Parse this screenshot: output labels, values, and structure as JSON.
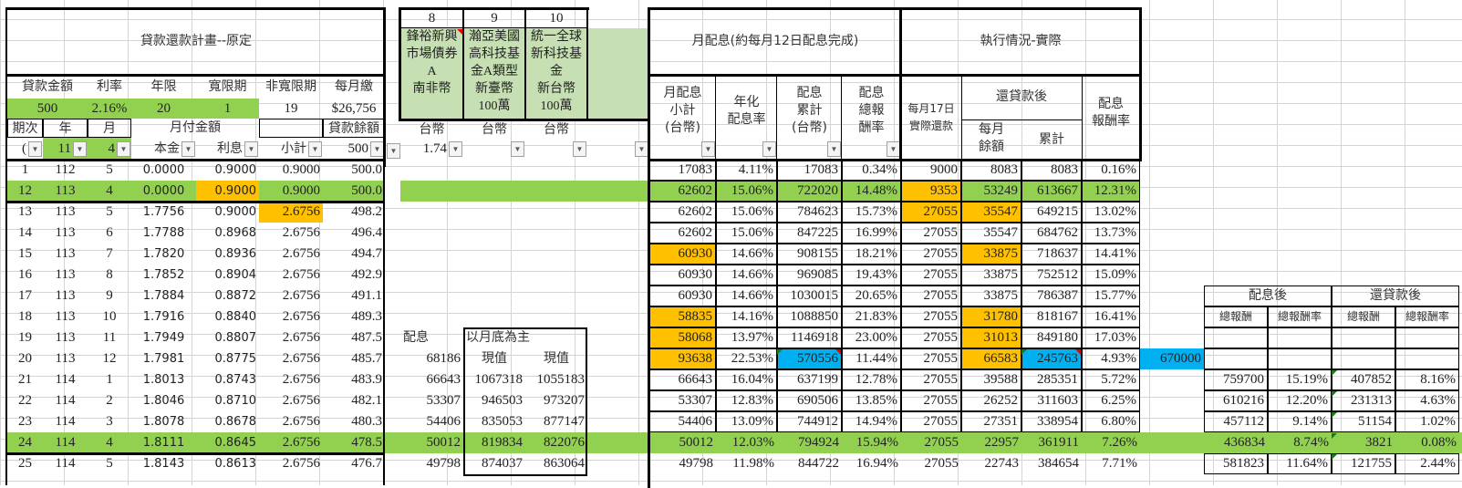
{
  "plan": {
    "title": "貸款還款計畫--原定",
    "param_labels": [
      "貸款金額",
      "利率",
      "年限",
      "寬限期",
      "非寬限期",
      "每月繳"
    ],
    "param_values": [
      "500",
      "2.16%",
      "20",
      "1",
      "19",
      "$26,756"
    ],
    "col_labels": {
      "period": "期次",
      "year": "年",
      "month": "月",
      "monthly_payment": "月付金額",
      "balance": "貸款餘額"
    },
    "filter_row": {
      "period": "(",
      "year": "11",
      "month": "4",
      "principal": "本金",
      "interest": "利息",
      "subtotal": "小計",
      "balance": "500"
    }
  },
  "funds": {
    "numbers": [
      "8",
      "9",
      "10",
      ""
    ],
    "names": [
      "鋒裕新興\n市場債券\nA\n南非幣",
      "瀚亞美國\n高科技基\n金A類型\n新臺幣\n100萬",
      "統一全球\n新科技基\n金\n新台幣\n100萬",
      ""
    ],
    "currency": [
      "台幣",
      "台幣",
      "台幣",
      ""
    ],
    "filter_value": "1.74"
  },
  "dividend": {
    "title": "月配息(約每月12日配息完成)",
    "headers": [
      "月配息\n小計\n(台幣)",
      "年化\n配息率",
      "配息\n累計\n(台幣)",
      "配息\n總報\n酬率"
    ]
  },
  "execution": {
    "title": "執行情況-實際",
    "header_repay": "每月17日\n實際還款",
    "header_after": "還貸款後",
    "header_remaining": "每月\n餘額",
    "header_cumulative": "累計",
    "header_rate": "配息\n報酬率"
  },
  "side_block": {
    "label_dividend": "配息",
    "label_month_end": "以月底為主",
    "label_pv1": "現值",
    "label_pv2": "現值",
    "rows": [
      {
        "dividend": "68186",
        "pv1": "",
        "pv2": ""
      },
      {
        "dividend": "66643",
        "pv1": "1067318",
        "pv2": "1055183"
      },
      {
        "dividend": "53307",
        "pv1": "946503",
        "pv2": "973207"
      },
      {
        "dividend": "54406",
        "pv1": "835053",
        "pv2": "877147"
      },
      {
        "dividend": "50012",
        "pv1": "819834",
        "pv2": "822076"
      },
      {
        "dividend": "49798",
        "pv1": "874037",
        "pv2": "863064"
      }
    ]
  },
  "extra_value": "670000",
  "summary": {
    "group1": "配息後",
    "group2": "還貸款後",
    "sub": [
      "總報酬",
      "總報酬率",
      "總報酬",
      "總報酬率"
    ],
    "rows": [
      [
        "",
        "",
        "",
        ""
      ],
      [
        "",
        "",
        "",
        ""
      ],
      [
        "759700",
        "15.19%",
        "407852",
        "8.16%"
      ],
      [
        "610216",
        "12.20%",
        "231313",
        "4.63%"
      ],
      [
        "457112",
        "9.14%",
        "51154",
        "1.02%"
      ],
      [
        "436834",
        "8.74%",
        "3821",
        "0.08%"
      ],
      [
        "581823",
        "11.64%",
        "121755",
        "2.44%"
      ]
    ]
  },
  "rows": [
    {
      "p": "1",
      "y": "112",
      "m": "5",
      "prin": "0.0000",
      "int": "0.9000",
      "sub": "0.9000",
      "bal": "500.0",
      "md": "17083",
      "ar": "4.11%",
      "cum": "17083",
      "tr": "0.34%",
      "rep": "9000",
      "rem": "8083",
      "rcum": "8083",
      "rr": "0.16%"
    },
    {
      "p": "12",
      "y": "113",
      "m": "4",
      "prin": "0.0000",
      "int": "0.9000",
      "sub": "0.9000",
      "bal": "500.0",
      "md": "62602",
      "ar": "15.06%",
      "cum": "722020",
      "tr": "14.48%",
      "rep": "9353",
      "rem": "53249",
      "rcum": "613667",
      "rr": "12.31%"
    },
    {
      "p": "13",
      "y": "113",
      "m": "5",
      "prin": "1.7756",
      "int": "0.9000",
      "sub": "2.6756",
      "bal": "498.2",
      "md": "62602",
      "ar": "15.06%",
      "cum": "784623",
      "tr": "15.73%",
      "rep": "27055",
      "rem": "35547",
      "rcum": "649215",
      "rr": "13.02%"
    },
    {
      "p": "14",
      "y": "113",
      "m": "6",
      "prin": "1.7788",
      "int": "0.8968",
      "sub": "2.6756",
      "bal": "496.4",
      "md": "62602",
      "ar": "15.06%",
      "cum": "847225",
      "tr": "16.99%",
      "rep": "27055",
      "rem": "35547",
      "rcum": "684762",
      "rr": "13.73%"
    },
    {
      "p": "15",
      "y": "113",
      "m": "7",
      "prin": "1.7820",
      "int": "0.8936",
      "sub": "2.6756",
      "bal": "494.7",
      "md": "60930",
      "ar": "14.66%",
      "cum": "908155",
      "tr": "18.21%",
      "rep": "27055",
      "rem": "33875",
      "rcum": "718637",
      "rr": "14.41%"
    },
    {
      "p": "16",
      "y": "113",
      "m": "8",
      "prin": "1.7852",
      "int": "0.8904",
      "sub": "2.6756",
      "bal": "492.9",
      "md": "60930",
      "ar": "14.66%",
      "cum": "969085",
      "tr": "19.43%",
      "rep": "27055",
      "rem": "33875",
      "rcum": "752512",
      "rr": "15.09%"
    },
    {
      "p": "17",
      "y": "113",
      "m": "9",
      "prin": "1.7884",
      "int": "0.8872",
      "sub": "2.6756",
      "bal": "491.1",
      "md": "60930",
      "ar": "14.66%",
      "cum": "1030015",
      "tr": "20.65%",
      "rep": "27055",
      "rem": "33875",
      "rcum": "786387",
      "rr": "15.77%"
    },
    {
      "p": "18",
      "y": "113",
      "m": "10",
      "prin": "1.7916",
      "int": "0.8840",
      "sub": "2.6756",
      "bal": "489.3",
      "md": "58835",
      "ar": "14.16%",
      "cum": "1088850",
      "tr": "21.83%",
      "rep": "27055",
      "rem": "31780",
      "rcum": "818167",
      "rr": "16.41%"
    },
    {
      "p": "19",
      "y": "113",
      "m": "11",
      "prin": "1.7949",
      "int": "0.8807",
      "sub": "2.6756",
      "bal": "487.5",
      "md": "58068",
      "ar": "13.97%",
      "cum": "1146918",
      "tr": "23.00%",
      "rep": "27055",
      "rem": "31013",
      "rcum": "849180",
      "rr": "17.03%"
    },
    {
      "p": "20",
      "y": "113",
      "m": "12",
      "prin": "1.7981",
      "int": "0.8775",
      "sub": "2.6756",
      "bal": "485.7",
      "md": "93638",
      "ar": "22.53%",
      "cum": "570556",
      "tr": "11.44%",
      "rep": "27055",
      "rem": "66583",
      "rcum": "245763",
      "rr": "4.93%"
    },
    {
      "p": "21",
      "y": "114",
      "m": "1",
      "prin": "1.8013",
      "int": "0.8743",
      "sub": "2.6756",
      "bal": "483.9",
      "md": "66643",
      "ar": "16.04%",
      "cum": "637199",
      "tr": "12.78%",
      "rep": "27055",
      "rem": "39588",
      "rcum": "285351",
      "rr": "5.72%"
    },
    {
      "p": "22",
      "y": "114",
      "m": "2",
      "prin": "1.8046",
      "int": "0.8710",
      "sub": "2.6756",
      "bal": "482.1",
      "md": "53307",
      "ar": "12.83%",
      "cum": "690506",
      "tr": "13.85%",
      "rep": "27055",
      "rem": "26252",
      "rcum": "311603",
      "rr": "6.25%"
    },
    {
      "p": "23",
      "y": "114",
      "m": "3",
      "prin": "1.8078",
      "int": "0.8678",
      "sub": "2.6756",
      "bal": "480.3",
      "md": "54406",
      "ar": "13.09%",
      "cum": "744912",
      "tr": "14.94%",
      "rep": "27055",
      "rem": "27351",
      "rcum": "338954",
      "rr": "6.80%"
    },
    {
      "p": "24",
      "y": "114",
      "m": "4",
      "prin": "1.8111",
      "int": "0.8645",
      "sub": "2.6756",
      "bal": "478.5",
      "md": "50012",
      "ar": "12.03%",
      "cum": "794924",
      "tr": "15.94%",
      "rep": "27055",
      "rem": "22957",
      "rcum": "361911",
      "rr": "7.26%"
    },
    {
      "p": "25",
      "y": "114",
      "m": "5",
      "prin": "1.8143",
      "int": "0.8613",
      "sub": "2.6756",
      "bal": "476.7",
      "md": "49798",
      "ar": "11.98%",
      "cum": "844722",
      "tr": "16.94%",
      "rep": "27055",
      "rem": "22743",
      "rcum": "384654",
      "rr": "7.71%"
    }
  ],
  "colors": {
    "green": "#92d050",
    "orange": "#ffc000",
    "blue": "#00b0f0",
    "light_green": "#c6e0b4"
  }
}
